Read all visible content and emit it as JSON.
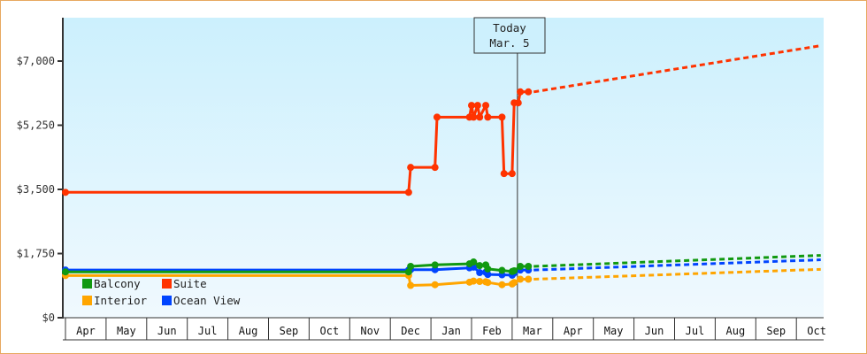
{
  "chart_data": {
    "type": "line",
    "title": "",
    "xlabel": "",
    "ylabel": "",
    "ylim": [
      0,
      8200
    ],
    "grid": false,
    "legend_position": "inside-bottom-left",
    "y_ticks": [
      {
        "value": 0,
        "label": "$0"
      },
      {
        "value": 1750,
        "label": "$1,750"
      },
      {
        "value": 3500,
        "label": "$3,500"
      },
      {
        "value": 5250,
        "label": "$5,250"
      },
      {
        "value": 7000,
        "label": "$7,000"
      }
    ],
    "x_ticks": [
      "Apr",
      "May",
      "Jun",
      "Jul",
      "Aug",
      "Sep",
      "Oct",
      "Nov",
      "Dec",
      "Jan",
      "Feb",
      "Mar",
      "Apr",
      "May",
      "Jun",
      "Jul",
      "Aug",
      "Sep",
      "Oct"
    ],
    "today_marker": {
      "line1": "Today",
      "line2": "Mar. 5",
      "x_index": 11.13
    },
    "series": [
      {
        "name": "Suite",
        "color": "#ff3300",
        "points": [
          [
            0,
            3420
          ],
          [
            8.45,
            3420
          ],
          [
            8.5,
            4100
          ],
          [
            9.1,
            4100
          ],
          [
            9.15,
            5470
          ],
          [
            9.95,
            5470
          ],
          [
            10.0,
            5790
          ],
          [
            10.05,
            5470
          ],
          [
            10.15,
            5790
          ],
          [
            10.2,
            5470
          ],
          [
            10.35,
            5790
          ],
          [
            10.4,
            5470
          ],
          [
            10.75,
            5470
          ],
          [
            10.8,
            3930
          ],
          [
            11.0,
            3930
          ],
          [
            11.05,
            5860
          ],
          [
            11.15,
            5860
          ],
          [
            11.2,
            6160
          ],
          [
            11.4,
            6160
          ]
        ],
        "forecast": [
          [
            11.4,
            6160
          ],
          [
            18.6,
            7420
          ]
        ]
      },
      {
        "name": "Balcony",
        "color": "#119911",
        "points": [
          [
            0,
            1250
          ],
          [
            8.45,
            1250
          ],
          [
            8.5,
            1400
          ],
          [
            9.1,
            1440
          ],
          [
            9.95,
            1470
          ],
          [
            10.05,
            1520
          ],
          [
            10.2,
            1420
          ],
          [
            10.35,
            1440
          ],
          [
            10.4,
            1330
          ],
          [
            10.75,
            1290
          ],
          [
            11.0,
            1260
          ],
          [
            11.05,
            1280
          ],
          [
            11.2,
            1400
          ],
          [
            11.4,
            1400
          ]
        ],
        "forecast": [
          [
            11.4,
            1400
          ],
          [
            18.6,
            1700
          ]
        ]
      },
      {
        "name": "Ocean View",
        "color": "#0044ff",
        "points": [
          [
            0,
            1300
          ],
          [
            8.45,
            1300
          ],
          [
            8.5,
            1310
          ],
          [
            9.1,
            1310
          ],
          [
            9.95,
            1360
          ],
          [
            10.05,
            1380
          ],
          [
            10.2,
            1230
          ],
          [
            10.35,
            1240
          ],
          [
            10.4,
            1180
          ],
          [
            10.75,
            1170
          ],
          [
            11.0,
            1160
          ],
          [
            11.05,
            1220
          ],
          [
            11.2,
            1300
          ],
          [
            11.4,
            1300
          ]
        ],
        "forecast": [
          [
            11.4,
            1300
          ],
          [
            18.6,
            1580
          ]
        ]
      },
      {
        "name": "Interior",
        "color": "#ffa500",
        "points": [
          [
            0,
            1150
          ],
          [
            8.45,
            1150
          ],
          [
            8.5,
            880
          ],
          [
            9.1,
            900
          ],
          [
            9.95,
            970
          ],
          [
            10.05,
            1000
          ],
          [
            10.2,
            990
          ],
          [
            10.35,
            980
          ],
          [
            10.4,
            960
          ],
          [
            10.75,
            900
          ],
          [
            11.0,
            920
          ],
          [
            11.05,
            960
          ],
          [
            11.2,
            1050
          ],
          [
            11.4,
            1050
          ]
        ],
        "forecast": [
          [
            11.4,
            1050
          ],
          [
            18.6,
            1320
          ]
        ]
      }
    ],
    "legend": [
      {
        "name": "Balcony",
        "color": "#119911"
      },
      {
        "name": "Suite",
        "color": "#ff3300"
      },
      {
        "name": "Interior",
        "color": "#ffa500"
      },
      {
        "name": "Ocean View",
        "color": "#0044ff"
      }
    ]
  },
  "colors": {
    "frame_border": "#e8a860",
    "plot_bg_top": "#ccf0fd",
    "plot_bg_bottom": "#f0f9fe",
    "axis": "#333333"
  }
}
